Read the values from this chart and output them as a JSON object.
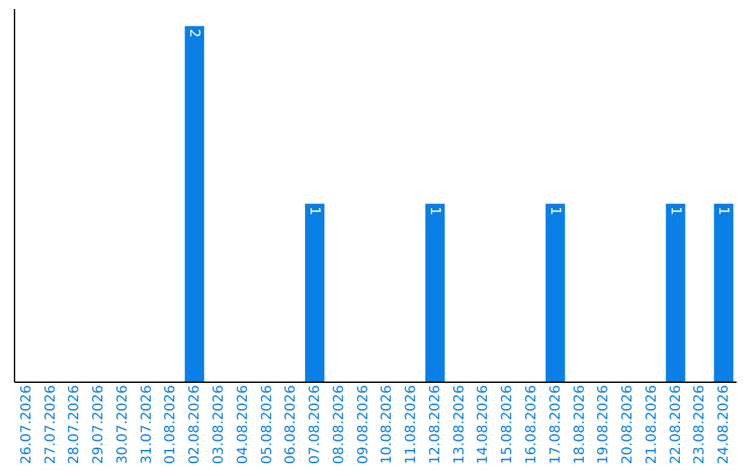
{
  "chart_data": {
    "type": "bar",
    "categories": [
      "26.07.2026",
      "27.07.2026",
      "28.07.2026",
      "29.07.2026",
      "30.07.2026",
      "31.07.2026",
      "01.08.2026",
      "02.08.2026",
      "03.08.2026",
      "04.08.2026",
      "05.08.2026",
      "06.08.2026",
      "07.08.2026",
      "08.08.2026",
      "09.08.2026",
      "10.08.2026",
      "11.08.2026",
      "12.08.2026",
      "13.08.2026",
      "14.08.2026",
      "15.08.2026",
      "16.08.2026",
      "17.08.2026",
      "18.08.2026",
      "19.08.2026",
      "20.08.2026",
      "21.08.2026",
      "22.08.2026",
      "23.08.2026",
      "24.08.2026"
    ],
    "values": [
      0,
      0,
      0,
      0,
      0,
      0,
      0,
      2,
      0,
      0,
      0,
      0,
      1,
      0,
      0,
      0,
      0,
      1,
      0,
      0,
      0,
      0,
      1,
      0,
      0,
      0,
      0,
      1,
      0,
      1
    ],
    "value_labels": [
      null,
      null,
      null,
      null,
      null,
      null,
      null,
      "2",
      null,
      null,
      null,
      null,
      "1",
      null,
      null,
      null,
      null,
      "1",
      null,
      null,
      null,
      null,
      "1",
      null,
      null,
      null,
      null,
      "1",
      null,
      "1"
    ],
    "color": "#0a7fe6",
    "grid": false,
    "tick_labels": "x"
  }
}
